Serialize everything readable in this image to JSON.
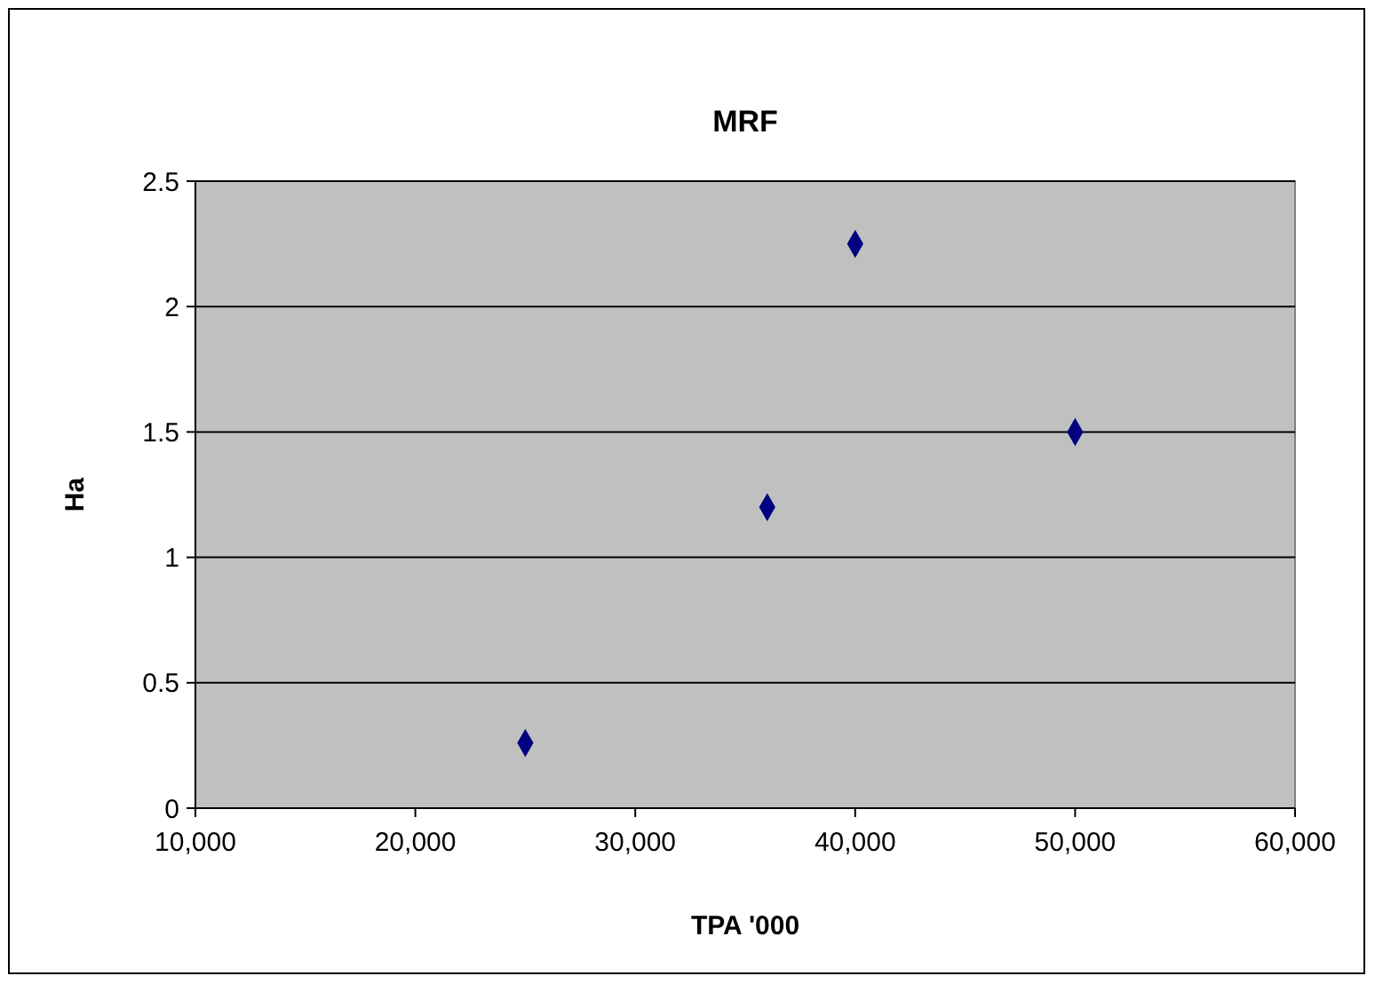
{
  "chart_data": {
    "type": "scatter",
    "title": "MRF",
    "xlabel": "TPA '000",
    "ylabel": "Ha",
    "x": [
      25000,
      36000,
      40000,
      50000
    ],
    "values": [
      0.26,
      1.2,
      2.25,
      1.5
    ],
    "color": "#000080",
    "marker": "diamond",
    "xlim": [
      10000,
      60000
    ],
    "xticks": [
      {
        "value": 10000,
        "label": "10,000"
      },
      {
        "value": 20000,
        "label": "20,000"
      },
      {
        "value": 30000,
        "label": "30,000"
      },
      {
        "value": 40000,
        "label": "40,000"
      },
      {
        "value": 50000,
        "label": "50,000"
      },
      {
        "value": 60000,
        "label": "60,000"
      }
    ],
    "ylim": [
      0,
      2.5
    ],
    "yticks": [
      0,
      0.5,
      1,
      1.5,
      2,
      2.5
    ],
    "grid": "y"
  }
}
